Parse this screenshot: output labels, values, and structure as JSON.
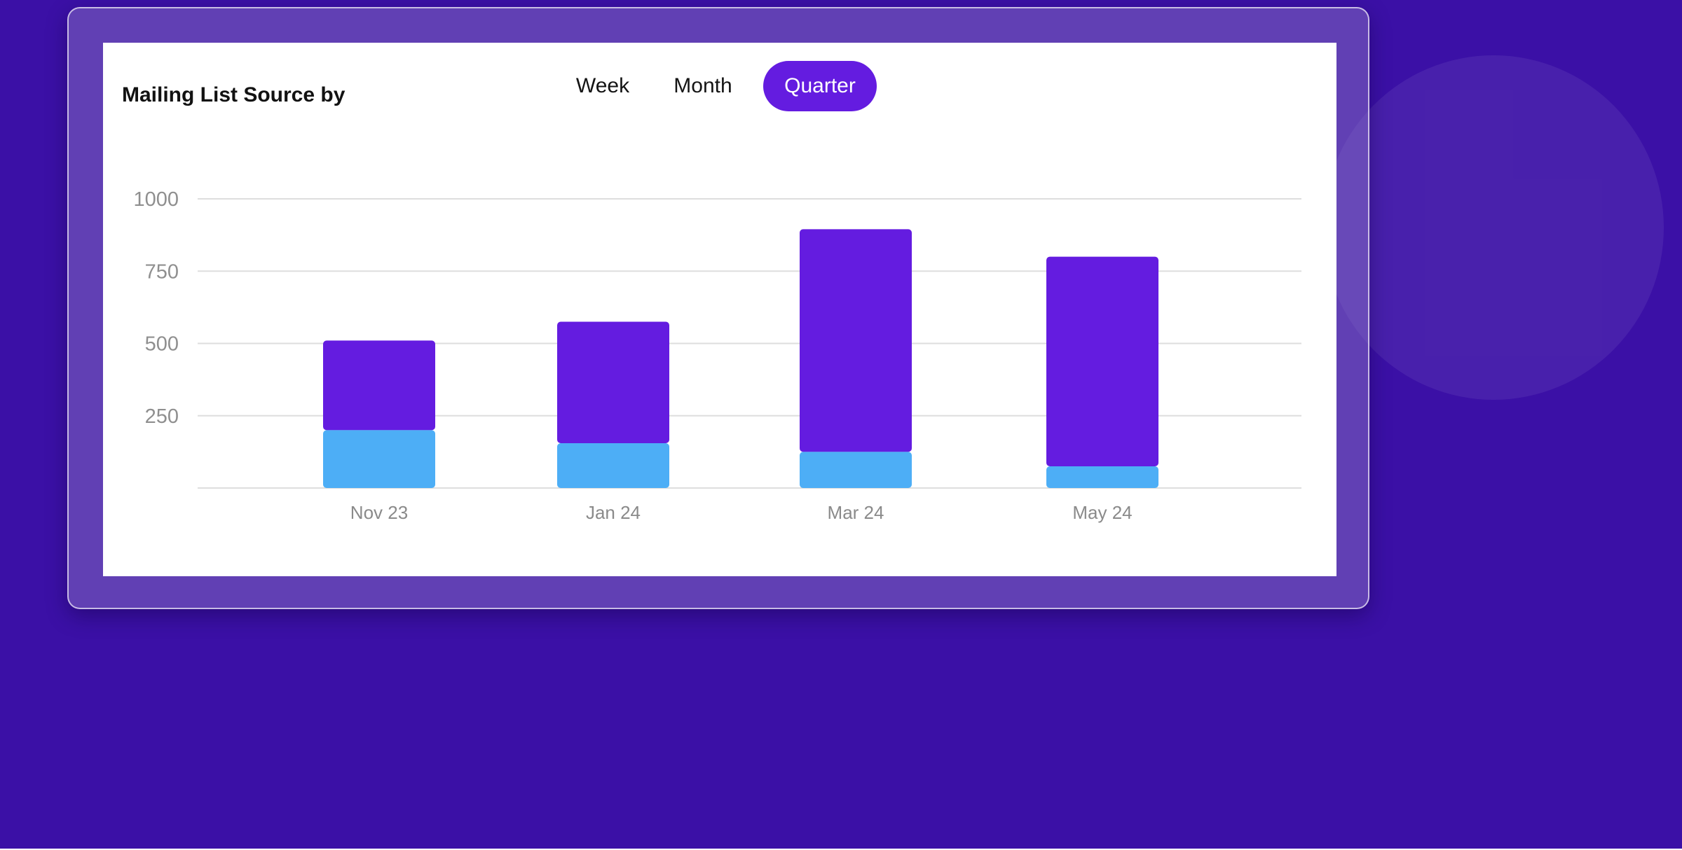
{
  "card": {
    "title": "Mailing List Source by"
  },
  "period_tabs": {
    "items": [
      "Week",
      "Month",
      "Quarter"
    ],
    "selected": "Quarter"
  },
  "colors": {
    "page_background": "#3b10a6",
    "series_primary": "#641ce0",
    "series_secondary": "#4daef6",
    "gridline": "#dedede",
    "tick_text": "#8f8f8f"
  },
  "chart_data": {
    "type": "bar",
    "stacked": true,
    "title": "Mailing List Source by",
    "xlabel": "",
    "ylabel": "",
    "categories": [
      "Nov 23",
      "Jan 24",
      "Mar 24",
      "May 24"
    ],
    "series": [
      {
        "values": [
          200,
          155,
          125,
          75
        ]
      },
      {
        "values": [
          310,
          420,
          770,
          725
        ]
      }
    ],
    "ylim": [
      0,
      1000
    ],
    "yticks": [
      250,
      500,
      750,
      1000
    ],
    "grid": true,
    "legend": "none"
  }
}
